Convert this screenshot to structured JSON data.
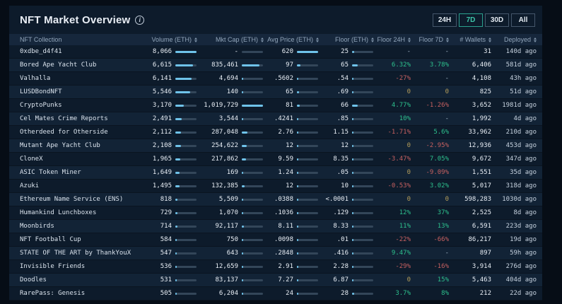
{
  "header": {
    "title": "NFT Market Overview",
    "info_icon": "info-circle-icon",
    "timeframes": [
      {
        "label": "24H",
        "active": false
      },
      {
        "label": "7D",
        "active": true
      },
      {
        "label": "30D",
        "active": false
      },
      {
        "label": "All",
        "active": false
      }
    ]
  },
  "colors": {
    "bar_fill": "#6fc3ea",
    "positive": "#2dc08d",
    "negative": "#c66060",
    "zero": "#b49d5a",
    "active_timeframe": "#3ec6aa"
  },
  "table": {
    "columns": [
      {
        "label": "NFT Collection",
        "sortable": false,
        "align": "left"
      },
      {
        "label": "Volume (ETH)",
        "sortable": true
      },
      {
        "label": "Mkt Cap (ETH)",
        "sortable": true
      },
      {
        "label": "Avg Price (ETH)",
        "sortable": true
      },
      {
        "label": "Floor (ETH)",
        "sortable": true
      },
      {
        "label": "Floor 24H",
        "sortable": true
      },
      {
        "label": "Floor 7D",
        "sortable": true
      },
      {
        "label": "# Wallets",
        "sortable": true
      },
      {
        "label": "Deployed",
        "sortable": true
      }
    ],
    "bar_max": {
      "volume": 8066,
      "mktcap": 1019729,
      "avg": 620,
      "floor": 250
    },
    "rows": [
      {
        "name": "0xdbe_d4f41",
        "volume": "8,066",
        "volume_v": 8066,
        "mktcap": "-",
        "mktcap_v": null,
        "avg": "620",
        "avg_v": 620,
        "floor": "25",
        "floor_v": 25,
        "f24": "-",
        "f7d": "-",
        "wallets": "31",
        "deployed": "140d ago"
      },
      {
        "name": "Bored Ape Yacht Club",
        "volume": "6,615",
        "volume_v": 6615,
        "mktcap": "835,461",
        "mktcap_v": 835461,
        "avg": "97",
        "avg_v": 97,
        "floor": "65",
        "floor_v": 65,
        "f24": "6.32%",
        "f7d": "3.78%",
        "wallets": "6,406",
        "deployed": "581d ago"
      },
      {
        "name": "Valhalla",
        "volume": "6,141",
        "volume_v": 6141,
        "mktcap": "4,694",
        "mktcap_v": 4694,
        "avg": ".5602",
        "avg_v": 0.5602,
        "floor": ".54",
        "floor_v": 0.54,
        "f24": "-27%",
        "f7d": "-",
        "wallets": "4,108",
        "deployed": "43h ago"
      },
      {
        "name": "LUSDBondNFT",
        "volume": "5,546",
        "volume_v": 5546,
        "mktcap": "140",
        "mktcap_v": 140,
        "avg": "65",
        "avg_v": 65,
        "floor": ".69",
        "floor_v": 0.69,
        "f24": "0",
        "f7d": "0",
        "wallets": "825",
        "deployed": "51d ago"
      },
      {
        "name": "CryptoPunks",
        "volume": "3,170",
        "volume_v": 3170,
        "mktcap": "1,019,729",
        "mktcap_v": 1019729,
        "avg": "81",
        "avg_v": 81,
        "floor": "66",
        "floor_v": 66,
        "f24": "4.77%",
        "f7d": "-1.26%",
        "wallets": "3,652",
        "deployed": "1981d ago"
      },
      {
        "name": "Cel Mates Crime Reports",
        "volume": "2,491",
        "volume_v": 2491,
        "mktcap": "3,544",
        "mktcap_v": 3544,
        "avg": ".4241",
        "avg_v": 0.4241,
        "floor": ".85",
        "floor_v": 0.85,
        "f24": "10%",
        "f7d": "-",
        "wallets": "1,992",
        "deployed": "4d ago"
      },
      {
        "name": "Otherdeed for Otherside",
        "volume": "2,112",
        "volume_v": 2112,
        "mktcap": "287,048",
        "mktcap_v": 287048,
        "avg": "2.76",
        "avg_v": 2.76,
        "floor": "1.15",
        "floor_v": 1.15,
        "f24": "-1.71%",
        "f7d": "5.6%",
        "wallets": "33,962",
        "deployed": "210d ago"
      },
      {
        "name": "Mutant Ape Yacht Club",
        "volume": "2,108",
        "volume_v": 2108,
        "mktcap": "254,622",
        "mktcap_v": 254622,
        "avg": "12",
        "avg_v": 12,
        "floor": "12",
        "floor_v": 12,
        "f24": "0",
        "f7d": "-2.95%",
        "wallets": "12,936",
        "deployed": "453d ago"
      },
      {
        "name": "CloneX",
        "volume": "1,965",
        "volume_v": 1965,
        "mktcap": "217,862",
        "mktcap_v": 217862,
        "avg": "9.59",
        "avg_v": 9.59,
        "floor": "8.35",
        "floor_v": 8.35,
        "f24": "-3.47%",
        "f7d": "7.05%",
        "wallets": "9,672",
        "deployed": "347d ago"
      },
      {
        "name": "ASIC Token Miner",
        "volume": "1,649",
        "volume_v": 1649,
        "mktcap": "169",
        "mktcap_v": 169,
        "avg": "1.24",
        "avg_v": 1.24,
        "floor": ".05",
        "floor_v": 0.05,
        "f24": "0",
        "f7d": "-9.09%",
        "wallets": "1,551",
        "deployed": "35d ago"
      },
      {
        "name": "Azuki",
        "volume": "1,495",
        "volume_v": 1495,
        "mktcap": "132,385",
        "mktcap_v": 132385,
        "avg": "12",
        "avg_v": 12,
        "floor": "10",
        "floor_v": 10,
        "f24": "-0.53%",
        "f7d": "3.02%",
        "wallets": "5,017",
        "deployed": "318d ago"
      },
      {
        "name": "Ethereum Name Service (ENS)",
        "volume": "818",
        "volume_v": 818,
        "mktcap": "5,509",
        "mktcap_v": 5509,
        "avg": ".0388",
        "avg_v": 0.0388,
        "floor": "<.0001",
        "floor_v": 0.0001,
        "f24": "0",
        "f7d": "0",
        "wallets": "598,283",
        "deployed": "1030d ago"
      },
      {
        "name": "Humankind Lunchboxes",
        "volume": "729",
        "volume_v": 729,
        "mktcap": "1,070",
        "mktcap_v": 1070,
        "avg": ".1036",
        "avg_v": 0.1036,
        "floor": ".129",
        "floor_v": 0.129,
        "f24": "12%",
        "f7d": "37%",
        "wallets": "2,525",
        "deployed": "8d ago"
      },
      {
        "name": "Moonbirds",
        "volume": "714",
        "volume_v": 714,
        "mktcap": "92,117",
        "mktcap_v": 92117,
        "avg": "8.11",
        "avg_v": 8.11,
        "floor": "8.33",
        "floor_v": 8.33,
        "f24": "11%",
        "f7d": "13%",
        "wallets": "6,591",
        "deployed": "223d ago"
      },
      {
        "name": "NFT Football Cup",
        "volume": "584",
        "volume_v": 584,
        "mktcap": "750",
        "mktcap_v": 750,
        "avg": ".0098",
        "avg_v": 0.0098,
        "floor": ".01",
        "floor_v": 0.01,
        "f24": "-22%",
        "f7d": "-66%",
        "wallets": "86,217",
        "deployed": "19d ago"
      },
      {
        "name": "STATE OF THE ART by ThankYouX",
        "volume": "547",
        "volume_v": 547,
        "mktcap": "643",
        "mktcap_v": 643,
        "avg": ".2848",
        "avg_v": 0.2848,
        "floor": ".416",
        "floor_v": 0.416,
        "f24": "9.47%",
        "f7d": "-",
        "wallets": "897",
        "deployed": "59h ago"
      },
      {
        "name": "Invisible Friends",
        "volume": "536",
        "volume_v": 536,
        "mktcap": "12,659",
        "mktcap_v": 12659,
        "avg": "2.91",
        "avg_v": 2.91,
        "floor": "2.28",
        "floor_v": 2.28,
        "f24": "-29%",
        "f7d": "-16%",
        "wallets": "3,914",
        "deployed": "276d ago"
      },
      {
        "name": "Doodles",
        "volume": "531",
        "volume_v": 531,
        "mktcap": "83,137",
        "mktcap_v": 83137,
        "avg": "7.27",
        "avg_v": 7.27,
        "floor": "6.87",
        "floor_v": 6.87,
        "f24": "0",
        "f7d": "15%",
        "wallets": "5,463",
        "deployed": "404d ago"
      },
      {
        "name": "RarePass: Genesis",
        "volume": "505",
        "volume_v": 505,
        "mktcap": "6,204",
        "mktcap_v": 6204,
        "avg": "24",
        "avg_v": 24,
        "floor": "28",
        "floor_v": 28,
        "f24": "3.7%",
        "f7d": "8%",
        "wallets": "212",
        "deployed": "22d ago"
      }
    ]
  }
}
